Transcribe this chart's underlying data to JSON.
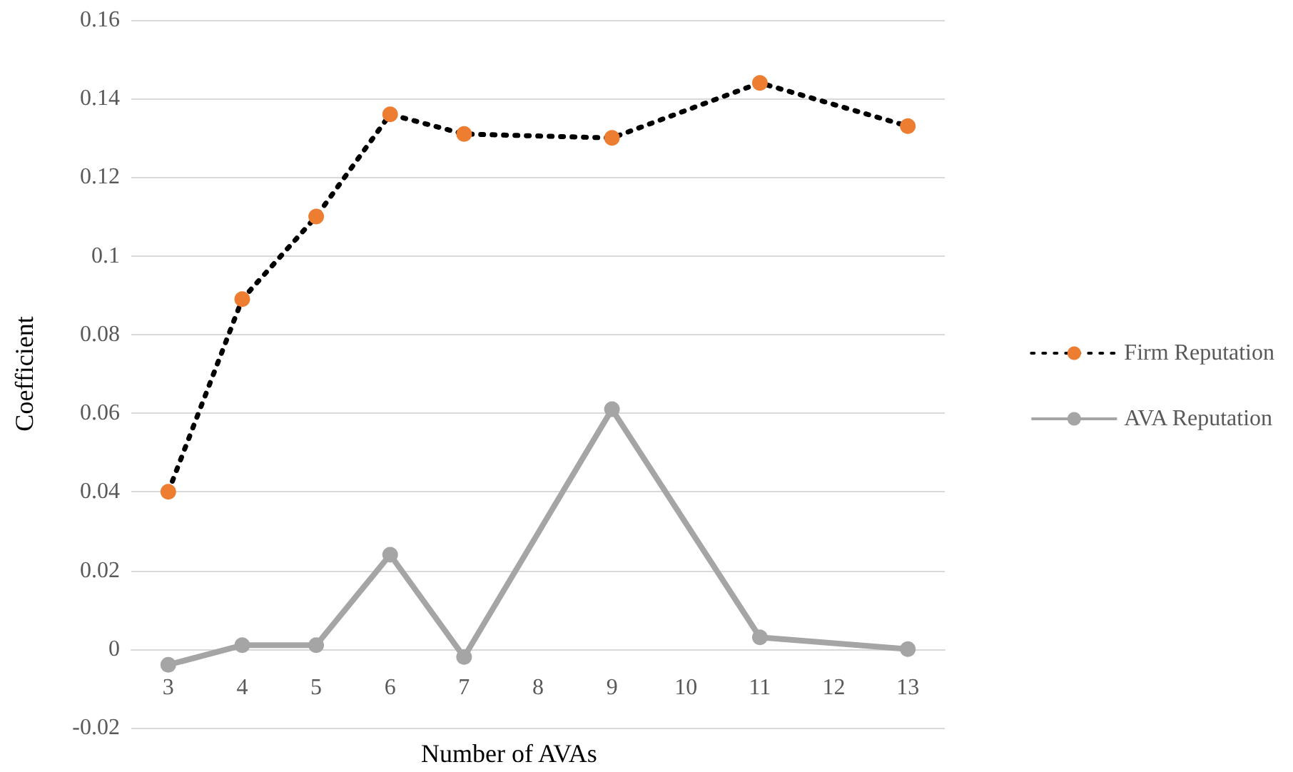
{
  "chart_data": {
    "type": "line",
    "xlabel": "Number of AVAs",
    "ylabel": "Coefficient",
    "x": [
      3,
      4,
      5,
      6,
      7,
      9,
      11,
      13
    ],
    "series": [
      {
        "name": "Firm Reputation",
        "color": "#ed7d31",
        "line_style": "dotted",
        "values": [
          0.04,
          0.089,
          0.11,
          0.136,
          0.131,
          0.13,
          0.144,
          0.133
        ]
      },
      {
        "name": "AVA Reputation",
        "color": "#a5a5a5",
        "line_style": "solid",
        "values": [
          -0.004,
          0.001,
          0.001,
          0.024,
          -0.002,
          0.061,
          0.003,
          0.0
        ]
      }
    ],
    "xlim": [
      2.5,
      13.5
    ],
    "xticks": [
      3,
      4,
      5,
      6,
      7,
      8,
      9,
      10,
      11,
      12,
      13
    ],
    "ylim": [
      -0.02,
      0.16
    ],
    "yticks": [
      -0.02,
      0,
      0.02,
      0.04,
      0.06,
      0.08,
      0.1,
      0.12,
      0.14,
      0.16
    ],
    "grid": "y",
    "legend": "right",
    "marker": "circle"
  }
}
